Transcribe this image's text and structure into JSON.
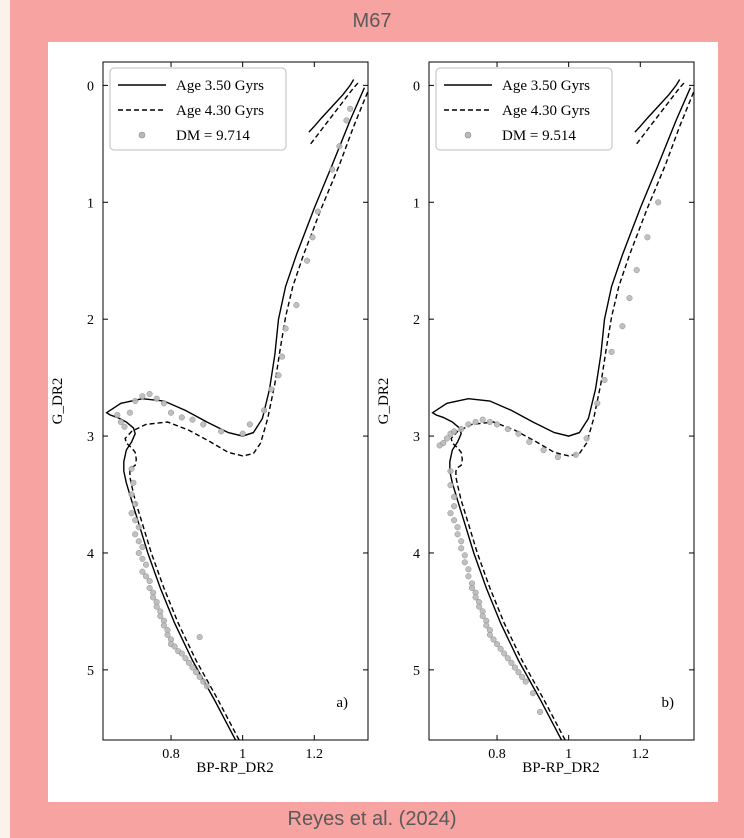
{
  "header": {
    "title": "M67"
  },
  "footer": {
    "credit": "Reyes et al. (2024)"
  },
  "colors": {
    "frame": "#f6a3a1",
    "background": "#fdf1ec",
    "point_fill": "#b9b9b9",
    "point_stroke": "#8e8e8e",
    "line": "#000000"
  },
  "chart_data": [
    {
      "type": "scatter",
      "panel_label": "a)",
      "xlabel": "BP-RP_DR2",
      "ylabel": "G_DR2",
      "xlim": [
        0.61,
        1.35
      ],
      "ylim": [
        5.6,
        -0.2
      ],
      "xticks": [
        0.8,
        1.0,
        1.2
      ],
      "yticks": [
        0,
        1,
        2,
        3,
        4,
        5
      ],
      "legend_position": "top-left",
      "series": [
        {
          "name": "Age 3.50 Gyrs",
          "kind": "line",
          "style": "solid",
          "x": [
            0.98,
            0.92,
            0.86,
            0.81,
            0.77,
            0.735,
            0.71,
            0.69,
            0.675,
            0.668,
            0.668,
            0.675,
            0.69,
            0.7,
            0.695,
            0.675,
            0.65,
            0.63,
            0.62,
            0.66,
            0.72,
            0.78,
            0.84,
            0.9,
            0.96,
            1.0,
            1.03,
            1.055,
            1.075,
            1.09,
            1.1,
            1.12,
            1.15,
            1.2,
            1.25,
            1.3,
            1.34
          ],
          "y": [
            5.6,
            5.25,
            4.92,
            4.6,
            4.3,
            4.0,
            3.75,
            3.55,
            3.4,
            3.3,
            3.22,
            3.12,
            3.05,
            2.98,
            2.93,
            2.88,
            2.84,
            2.82,
            2.8,
            2.72,
            2.68,
            2.7,
            2.78,
            2.88,
            2.97,
            3.0,
            2.97,
            2.85,
            2.6,
            2.3,
            2.0,
            1.72,
            1.45,
            1.05,
            0.68,
            0.3,
            0.02
          ]
        },
        {
          "name": "Age 4.30 Gyrs",
          "kind": "line",
          "style": "dashed",
          "x": [
            0.99,
            0.93,
            0.87,
            0.82,
            0.78,
            0.745,
            0.72,
            0.7,
            0.69,
            0.685,
            0.685,
            0.69,
            0.7,
            0.703,
            0.7,
            0.69,
            0.675,
            0.672,
            0.69,
            0.73,
            0.79,
            0.85,
            0.91,
            0.96,
            1.0,
            1.03,
            1.05,
            1.07,
            1.09,
            1.105,
            1.12,
            1.14,
            1.17,
            1.22,
            1.27,
            1.31,
            1.35
          ],
          "y": [
            5.6,
            5.25,
            4.92,
            4.6,
            4.3,
            4.0,
            3.75,
            3.55,
            3.42,
            3.35,
            3.3,
            3.27,
            3.25,
            3.2,
            3.14,
            3.1,
            3.06,
            3.02,
            2.96,
            2.9,
            2.88,
            2.95,
            3.05,
            3.14,
            3.17,
            3.15,
            3.06,
            2.85,
            2.55,
            2.25,
            1.98,
            1.72,
            1.45,
            1.05,
            0.68,
            0.35,
            0.05
          ]
        },
        {
          "name": "Age 3.50 Gyrs red clump",
          "kind": "line",
          "style": "solid",
          "x": [
            1.185,
            1.2,
            1.22,
            1.25,
            1.28,
            1.3,
            1.31
          ],
          "y": [
            0.4,
            0.35,
            0.28,
            0.18,
            0.08,
            0.0,
            -0.05
          ]
        },
        {
          "name": "Age 4.30 Gyrs red clump",
          "kind": "line",
          "style": "dashed",
          "x": [
            1.19,
            1.21,
            1.23,
            1.26,
            1.29,
            1.31,
            1.325
          ],
          "y": [
            0.5,
            0.42,
            0.34,
            0.22,
            0.1,
            0.02,
            -0.03
          ]
        },
        {
          "name": "DM = 9.714",
          "kind": "points",
          "x": [
            0.65,
            0.66,
            0.67,
            0.685,
            0.7,
            0.72,
            0.74,
            0.76,
            0.78,
            0.8,
            0.83,
            0.86,
            0.89,
            0.94,
            1.0,
            1.02,
            1.06,
            1.08,
            1.1,
            1.11,
            1.12,
            1.15,
            1.18,
            1.195,
            1.21,
            1.25,
            1.27,
            1.29,
            1.3,
            0.69,
            0.695,
            0.69,
            0.7,
            0.69,
            0.7,
            0.71,
            0.7,
            0.71,
            0.72,
            0.71,
            0.72,
            0.73,
            0.72,
            0.73,
            0.74,
            0.74,
            0.75,
            0.75,
            0.76,
            0.76,
            0.77,
            0.77,
            0.78,
            0.78,
            0.79,
            0.79,
            0.8,
            0.8,
            0.81,
            0.82,
            0.83,
            0.84,
            0.85,
            0.86,
            0.87,
            0.88,
            0.89,
            0.9,
            0.88
          ],
          "y": [
            2.82,
            2.88,
            2.92,
            2.8,
            2.7,
            2.66,
            2.64,
            2.68,
            2.72,
            2.8,
            2.84,
            2.86,
            2.9,
            2.96,
            2.98,
            2.9,
            2.78,
            2.6,
            2.48,
            2.32,
            2.08,
            1.88,
            1.5,
            1.3,
            1.08,
            0.72,
            0.52,
            0.3,
            0.2,
            3.28,
            3.4,
            3.5,
            3.58,
            3.66,
            3.72,
            3.78,
            3.84,
            3.9,
            3.95,
            4.0,
            4.05,
            4.1,
            4.16,
            4.2,
            4.24,
            4.3,
            4.34,
            4.38,
            4.42,
            4.46,
            4.5,
            4.54,
            4.58,
            4.62,
            4.66,
            4.7,
            4.74,
            4.78,
            4.8,
            4.84,
            4.86,
            4.9,
            4.94,
            4.98,
            5.02,
            5.06,
            5.1,
            5.14,
            4.72
          ]
        }
      ]
    },
    {
      "type": "scatter",
      "panel_label": "b)",
      "xlabel": "BP-RP_DR2",
      "ylabel": "G_DR2",
      "xlim": [
        0.61,
        1.35
      ],
      "ylim": [
        5.6,
        -0.2
      ],
      "xticks": [
        0.8,
        1.0,
        1.2
      ],
      "yticks": [
        0,
        1,
        2,
        3,
        4,
        5
      ],
      "legend_position": "top-left",
      "series": [
        {
          "name": "Age 3.50 Gyrs",
          "kind": "line",
          "style": "solid",
          "x": [
            0.98,
            0.92,
            0.86,
            0.81,
            0.77,
            0.735,
            0.71,
            0.69,
            0.675,
            0.668,
            0.668,
            0.675,
            0.69,
            0.7,
            0.695,
            0.675,
            0.65,
            0.63,
            0.62,
            0.66,
            0.72,
            0.78,
            0.84,
            0.9,
            0.96,
            1.0,
            1.03,
            1.055,
            1.075,
            1.09,
            1.1,
            1.12,
            1.15,
            1.2,
            1.25,
            1.3,
            1.34
          ],
          "y": [
            5.6,
            5.25,
            4.92,
            4.6,
            4.3,
            4.0,
            3.75,
            3.55,
            3.4,
            3.3,
            3.22,
            3.12,
            3.05,
            2.98,
            2.93,
            2.88,
            2.84,
            2.82,
            2.8,
            2.72,
            2.68,
            2.7,
            2.78,
            2.88,
            2.97,
            3.0,
            2.97,
            2.85,
            2.6,
            2.3,
            2.0,
            1.72,
            1.45,
            1.05,
            0.68,
            0.3,
            0.02
          ]
        },
        {
          "name": "Age 4.30 Gyrs",
          "kind": "line",
          "style": "dashed",
          "x": [
            0.99,
            0.93,
            0.87,
            0.82,
            0.78,
            0.745,
            0.72,
            0.7,
            0.69,
            0.685,
            0.685,
            0.69,
            0.7,
            0.703,
            0.7,
            0.69,
            0.675,
            0.672,
            0.69,
            0.73,
            0.79,
            0.85,
            0.91,
            0.96,
            1.0,
            1.03,
            1.05,
            1.07,
            1.09,
            1.105,
            1.12,
            1.14,
            1.17,
            1.22,
            1.27,
            1.31,
            1.35
          ],
          "y": [
            5.6,
            5.25,
            4.92,
            4.6,
            4.3,
            4.0,
            3.75,
            3.55,
            3.42,
            3.35,
            3.3,
            3.27,
            3.25,
            3.2,
            3.14,
            3.1,
            3.06,
            3.02,
            2.96,
            2.9,
            2.88,
            2.95,
            3.05,
            3.14,
            3.17,
            3.15,
            3.06,
            2.85,
            2.55,
            2.25,
            1.98,
            1.72,
            1.45,
            1.05,
            0.68,
            0.35,
            0.05
          ]
        },
        {
          "name": "Age 3.50 Gyrs red clump",
          "kind": "line",
          "style": "solid",
          "x": [
            1.185,
            1.2,
            1.22,
            1.25,
            1.28,
            1.3,
            1.31
          ],
          "y": [
            0.4,
            0.35,
            0.28,
            0.18,
            0.08,
            0.0,
            -0.05
          ]
        },
        {
          "name": "Age 4.30 Gyrs red clump",
          "kind": "line",
          "style": "dashed",
          "x": [
            1.19,
            1.21,
            1.23,
            1.26,
            1.29,
            1.31,
            1.325
          ],
          "y": [
            0.5,
            0.42,
            0.34,
            0.22,
            0.1,
            0.02,
            -0.03
          ]
        },
        {
          "name": "DM = 9.514",
          "kind": "points",
          "x": [
            0.64,
            0.65,
            0.66,
            0.67,
            0.68,
            0.7,
            0.72,
            0.74,
            0.76,
            0.78,
            0.8,
            0.83,
            0.86,
            0.89,
            0.93,
            0.97,
            1.02,
            1.05,
            1.08,
            1.1,
            1.12,
            1.15,
            1.17,
            1.19,
            1.22,
            1.25,
            0.67,
            0.67,
            0.68,
            0.68,
            0.67,
            0.68,
            0.69,
            0.69,
            0.7,
            0.7,
            0.71,
            0.71,
            0.72,
            0.72,
            0.73,
            0.73,
            0.74,
            0.74,
            0.75,
            0.75,
            0.76,
            0.76,
            0.77,
            0.77,
            0.78,
            0.78,
            0.79,
            0.8,
            0.81,
            0.82,
            0.83,
            0.84,
            0.85,
            0.86,
            0.87,
            0.88,
            0.9,
            0.92
          ],
          "y": [
            3.08,
            3.06,
            3.02,
            2.98,
            2.96,
            2.94,
            2.9,
            2.88,
            2.86,
            2.88,
            2.9,
            2.94,
            2.98,
            3.05,
            3.12,
            3.18,
            3.16,
            3.02,
            2.72,
            2.52,
            2.28,
            2.06,
            1.82,
            1.58,
            1.3,
            1.0,
            3.3,
            3.42,
            3.52,
            3.6,
            3.66,
            3.72,
            3.78,
            3.84,
            3.9,
            3.96,
            4.02,
            4.08,
            4.14,
            4.2,
            4.26,
            4.3,
            4.34,
            4.38,
            4.42,
            4.46,
            4.5,
            4.54,
            4.58,
            4.62,
            4.66,
            4.7,
            4.74,
            4.78,
            4.82,
            4.86,
            4.9,
            4.94,
            4.98,
            5.02,
            5.06,
            5.1,
            5.2,
            5.36
          ]
        }
      ]
    }
  ]
}
